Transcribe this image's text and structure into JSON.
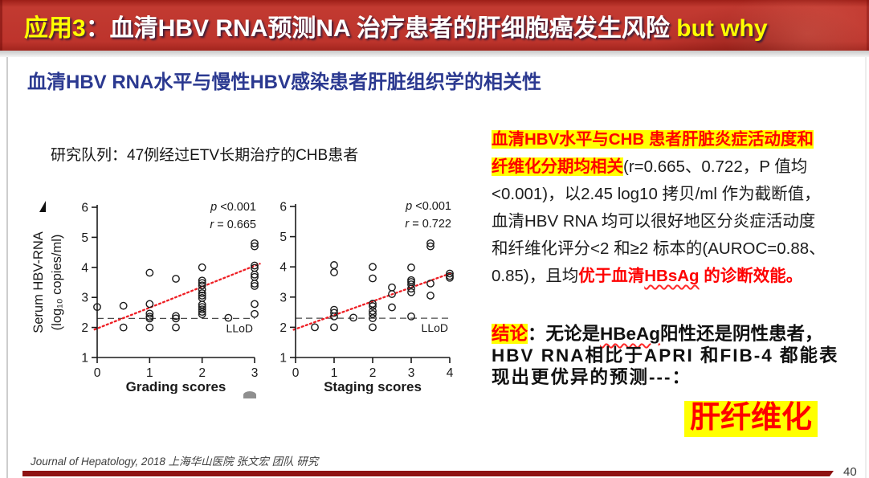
{
  "banner": {
    "app_label": "应用3",
    "title_main": "：血清HBV RNA预测NA 治疗患者的肝细胞癌发生风险 ",
    "suffix": "but why",
    "background_red": "#bd342c",
    "accent_yellow": "#ffff00"
  },
  "subtitle": "血清HBV RNA水平与慢性HBV感染患者肝脏组织学的相关性",
  "subtitle_color": "#2b3990",
  "cohort": "研究队列：47例经过ETV长期治疗的CHB患者",
  "chart_data": [
    {
      "type": "scatter",
      "xlabel": "Grading scores",
      "ylabel": "Serum HBV-RNA (log10 copies/ml)",
      "ylabel_lines": [
        "Serum HBV-RNA",
        "(log₁₀ copies/ml)"
      ],
      "xlim": [
        0,
        3
      ],
      "ylim": [
        1,
        6
      ],
      "xticks": [
        0,
        1,
        2,
        3
      ],
      "yticks": [
        1,
        2,
        3,
        4,
        5,
        6
      ],
      "annotation": {
        "p": "p <0.001",
        "r": "r = 0.665"
      },
      "lloq": {
        "y": 2.3,
        "label": "LLoD"
      },
      "trend": {
        "x1": -0.05,
        "y1": 1.93,
        "x2": 3.1,
        "y2": 4.12,
        "color": "#ee1d23"
      },
      "points": [
        [
          0,
          2.68
        ],
        [
          0.5,
          2.72
        ],
        [
          0.5,
          2.0
        ],
        [
          1,
          3.82
        ],
        [
          1,
          2.78
        ],
        [
          1,
          2.46
        ],
        [
          1,
          2.36
        ],
        [
          1,
          2.3
        ],
        [
          1,
          2.0
        ],
        [
          1.5,
          3.62
        ],
        [
          1.5,
          2.38
        ],
        [
          1.5,
          2.3
        ],
        [
          1.5,
          2.0
        ],
        [
          2,
          4.0
        ],
        [
          2,
          3.56
        ],
        [
          2,
          3.48
        ],
        [
          2,
          3.4
        ],
        [
          2,
          3.26
        ],
        [
          2,
          3.14
        ],
        [
          2,
          3.06
        ],
        [
          2,
          2.98
        ],
        [
          2,
          2.76
        ],
        [
          2,
          2.68
        ],
        [
          2,
          2.6
        ],
        [
          2,
          2.52
        ],
        [
          2,
          2.44
        ],
        [
          2.5,
          2.32
        ],
        [
          3,
          4.8
        ],
        [
          3,
          4.7
        ],
        [
          3,
          4.06
        ],
        [
          3,
          3.98
        ],
        [
          3,
          3.76
        ],
        [
          3,
          3.68
        ],
        [
          3,
          3.46
        ],
        [
          3,
          3.38
        ],
        [
          3,
          2.78
        ],
        [
          3,
          2.45
        ]
      ],
      "legend": "none",
      "grid": false
    },
    {
      "type": "scatter",
      "xlabel": "Staging scores",
      "ylabel": "",
      "ylabel_lines": [],
      "xlim": [
        0,
        4
      ],
      "ylim": [
        1,
        6
      ],
      "xticks": [
        0,
        1,
        2,
        3,
        4
      ],
      "yticks": [
        1,
        2,
        3,
        4,
        5,
        6
      ],
      "annotation": {
        "p": "p <0.001",
        "r": "r = 0.722"
      },
      "lloq": {
        "y": 2.3,
        "label": "LLoD"
      },
      "trend": {
        "x1": -0.05,
        "y1": 1.92,
        "x2": 4.05,
        "y2": 3.8,
        "color": "#ee1d23"
      },
      "points": [
        [
          0.5,
          2.0
        ],
        [
          1,
          4.06
        ],
        [
          1,
          3.82
        ],
        [
          1,
          2.58
        ],
        [
          1,
          2.48
        ],
        [
          1,
          2.36
        ],
        [
          1,
          2.0
        ],
        [
          1.5,
          2.32
        ],
        [
          2,
          4.0
        ],
        [
          2,
          3.62
        ],
        [
          2,
          2.78
        ],
        [
          2,
          2.7
        ],
        [
          2,
          2.54
        ],
        [
          2,
          2.44
        ],
        [
          2,
          2.3
        ],
        [
          2,
          2.0
        ],
        [
          2.5,
          3.32
        ],
        [
          2.5,
          3.1
        ],
        [
          2.5,
          2.66
        ],
        [
          3,
          3.98
        ],
        [
          3,
          3.56
        ],
        [
          3,
          3.5
        ],
        [
          3,
          3.42
        ],
        [
          3,
          3.28
        ],
        [
          3,
          3.16
        ],
        [
          3,
          2.36
        ],
        [
          3.5,
          4.78
        ],
        [
          3.5,
          4.68
        ],
        [
          3.5,
          3.45
        ],
        [
          3.5,
          3.05
        ],
        [
          4,
          3.78
        ],
        [
          4,
          3.7
        ],
        [
          4,
          3.64
        ]
      ],
      "legend": "none",
      "grid": false
    }
  ],
  "right_panel": {
    "para_lines": {
      "l1_hl": "血清HBV水平与CHB 患者肝脏炎症活动度和",
      "l2_hl": "纤维化分期均相关",
      "l2_text": "(r=0.665、0.722，P 值均",
      "l3": "<0.001)，以2.45 log10 拷贝/ml 作为截断值，",
      "l4": "血清HBV RNA 均可以很好地区分炎症活动度",
      "l5": "和纤维化评分<2 和≥2 标本的(AUROC=0.88、",
      "l6_text": "0.85)，且均",
      "l6_red1": "优于血清",
      "l6_red_term": "HBsAg",
      "l6_red2": " 的诊断效能。"
    },
    "conclusion": {
      "label": "结论",
      "c1a": "：无论是",
      "c1_term": "HBeAg",
      "c1b": "阳性还是阴性患者，",
      "c2": "HBV RNA相比于APRI 和FIB-4 都能表",
      "c3": "现出更优异的预测---："
    },
    "final_highlight": "肝纤维化",
    "highlight_yellow": "#ffff00",
    "text_red": "#fe0000"
  },
  "footer": {
    "citation": "Journal of Hepatology, 2018 上海华山医院 张文宏 团队 研究",
    "page_number": "40",
    "bar_color": "#8e1313"
  }
}
